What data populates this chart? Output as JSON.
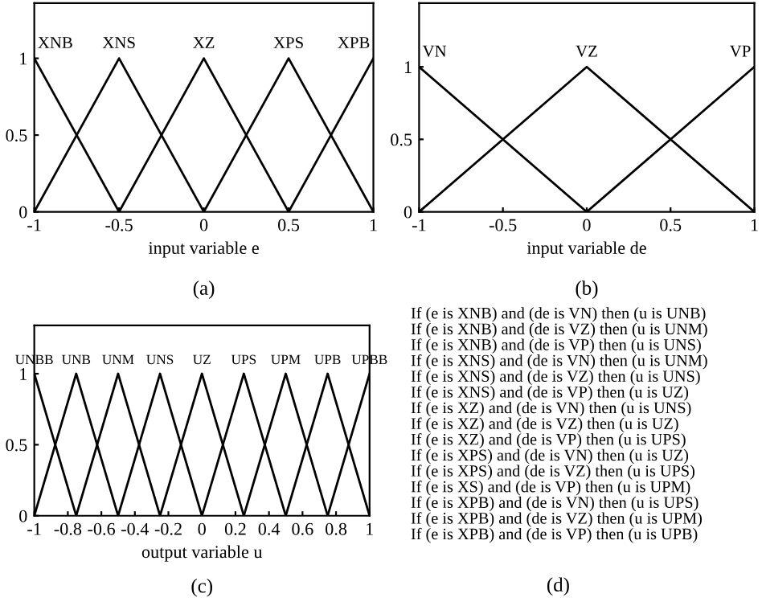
{
  "chart_data": [
    {
      "type": "line",
      "xlabel": "input variable e",
      "xlim": [
        -1,
        1
      ],
      "ylim": [
        0,
        1.36
      ],
      "xticks": [
        -1,
        -0.5,
        0,
        0.5,
        1
      ],
      "yticks": [
        0,
        0.5,
        1
      ],
      "grid": false,
      "legend": false,
      "marker": "none",
      "line_style": "solid",
      "annotations": [
        "(a)"
      ],
      "series": [
        {
          "name": "XNB",
          "color": "#000000",
          "x": [
            -1,
            -0.5
          ],
          "values": [
            1,
            0
          ]
        },
        {
          "name": "XNS",
          "color": "#000000",
          "x": [
            -1,
            -0.5,
            0
          ],
          "values": [
            0,
            1,
            0
          ]
        },
        {
          "name": "XZ",
          "color": "#000000",
          "x": [
            -0.5,
            0,
            0.5
          ],
          "values": [
            0,
            1,
            0
          ]
        },
        {
          "name": "XPS",
          "color": "#000000",
          "x": [
            0,
            0.5,
            1
          ],
          "values": [
            0,
            1,
            0
          ]
        },
        {
          "name": "XPB",
          "color": "#000000",
          "x": [
            0.5,
            1
          ],
          "values": [
            0,
            1
          ]
        }
      ]
    },
    {
      "type": "line",
      "xlabel": "input variable de",
      "xlim": [
        -1,
        1
      ],
      "ylim": [
        0,
        1.44
      ],
      "xticks": [
        -1,
        -0.5,
        0,
        0.5,
        1
      ],
      "yticks": [
        0,
        0.5,
        1
      ],
      "grid": false,
      "legend": false,
      "marker": "none",
      "line_style": "solid",
      "annotations": [
        "(b)"
      ],
      "series": [
        {
          "name": "VN",
          "color": "#000000",
          "x": [
            -1,
            0
          ],
          "values": [
            1,
            0
          ]
        },
        {
          "name": "VZ",
          "color": "#000000",
          "x": [
            -1,
            0,
            1
          ],
          "values": [
            0,
            1,
            0
          ]
        },
        {
          "name": "VP",
          "color": "#000000",
          "x": [
            0,
            1
          ],
          "values": [
            0,
            1
          ]
        }
      ]
    },
    {
      "type": "line",
      "xlabel": "output variable u",
      "xlim": [
        -1,
        1
      ],
      "ylim": [
        0,
        1.34
      ],
      "xticks": [
        -1,
        -0.8,
        -0.6,
        -0.4,
        -0.2,
        0,
        0.2,
        0.4,
        0.6,
        0.8,
        1
      ],
      "yticks": [
        0,
        0.5,
        1
      ],
      "grid": false,
      "legend": false,
      "marker": "none",
      "line_style": "solid",
      "annotations": [
        "(c)"
      ],
      "series": [
        {
          "name": "UNBB",
          "color": "#000000",
          "x": [
            -1,
            -0.75
          ],
          "values": [
            1,
            0
          ]
        },
        {
          "name": "UNB",
          "color": "#000000",
          "x": [
            -1,
            -0.75,
            -0.5
          ],
          "values": [
            0,
            1,
            0
          ]
        },
        {
          "name": "UNM",
          "color": "#000000",
          "x": [
            -0.75,
            -0.5,
            -0.25
          ],
          "values": [
            0,
            1,
            0
          ]
        },
        {
          "name": "UNS",
          "color": "#000000",
          "x": [
            -0.5,
            -0.25,
            0
          ],
          "values": [
            0,
            1,
            0
          ]
        },
        {
          "name": "UZ",
          "color": "#000000",
          "x": [
            -0.25,
            0,
            0.25
          ],
          "values": [
            0,
            1,
            0
          ]
        },
        {
          "name": "UPS",
          "color": "#000000",
          "x": [
            0,
            0.25,
            0.5
          ],
          "values": [
            0,
            1,
            0
          ]
        },
        {
          "name": "UPM",
          "color": "#000000",
          "x": [
            0.25,
            0.5,
            0.75
          ],
          "values": [
            0,
            1,
            0
          ]
        },
        {
          "name": "UPB",
          "color": "#000000",
          "x": [
            0.5,
            0.75,
            1
          ],
          "values": [
            0,
            1,
            0
          ]
        },
        {
          "name": "UPBB",
          "color": "#000000",
          "x": [
            0.75,
            1
          ],
          "values": [
            0,
            1
          ]
        }
      ]
    },
    {
      "type": "other",
      "annotations": [
        "If (e is XNB) and (de is VN) then (u is UNB)",
        "If (e is XNB) and (de is VZ) then (u is UNM)",
        "If (e is XNB) and (de is VP) then (u is UNS)",
        "If (e is XNS) and (de is VN) then (u is UNM)",
        "If (e is XNS) and (de is VZ) then (u is UNS)",
        "If (e is XNS) and (de is VP) then (u is UZ)",
        "If (e is XZ) and (de is VN) then (u is UNS)",
        "If (e is XZ) and (de is VZ) then (u is UZ)",
        "If (e is XZ) and (de is VP) then (u is UPS)",
        "If (e is XPS) and (de is VN) then (u is UZ)",
        "If (e is XPS) and (de is VZ) then (u is UPS)",
        "If (e is XS) and (de is VP) then (u is UPM)",
        "If (e is XPB) and (de is VN) then (u is UPS)",
        "If (e is XPB) and (de is VZ) then (u is UPM)",
        "If (e is XPB) and (de is VP) then (u is UPB)",
        "(d)"
      ]
    }
  ]
}
